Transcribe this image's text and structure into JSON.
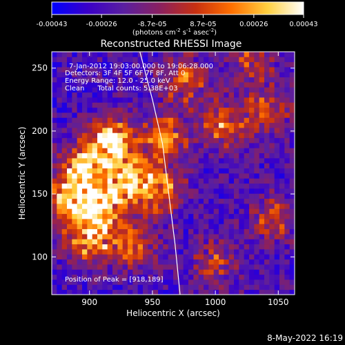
{
  "chart_data": {
    "type": "heatmap",
    "title": "Reconstructed RHESSI Image",
    "xlabel": "Heliocentric X (arcsec)",
    "ylabel": "Heliocentric Y (arcsec)",
    "xlim": [
      870,
      1063
    ],
    "ylim": [
      70,
      263
    ],
    "x_ticks": [
      900,
      950,
      1000,
      1050
    ],
    "y_ticks": [
      100,
      150,
      200,
      250
    ],
    "colorbar": {
      "min": -0.00043,
      "max": 0.00043,
      "ticks": [
        -0.00043,
        -0.00026,
        -8.7e-05,
        8.7e-05,
        0.00026,
        0.00043
      ],
      "tick_labels": [
        "-0.00043",
        "-0.00026",
        "-8.7e-05",
        "8.7e-05",
        "0.00026",
        "0.00043"
      ],
      "units_prefix": "(photons cm",
      "units_exp1": "-2",
      "units_mid": " s",
      "units_exp2": "-1",
      "units_mid2": " asec",
      "units_exp3": "-2",
      "units_suffix": ")",
      "colors": [
        "#0000ff",
        "#3a00c8",
        "#5a1fa0",
        "#8a2060",
        "#c83010",
        "#ff7000",
        "#ffd040",
        "#ffffff"
      ]
    },
    "annotations": [
      "7-Jan-2012 19:03:00.000 to 19:06:28.000",
      "Detectors: 3F 4F 5F 6F 7F 8F, Att 0",
      "Energy Range: 12.0 - 25.0 keV",
      "Clean      Total counts: 5.38E+03"
    ],
    "peak_label": "Position of Peak = [918,189]",
    "peak": [
      918,
      189
    ],
    "limb_curve": [
      [
        940,
        263
      ],
      [
        950,
        225
      ],
      [
        958,
        190
      ],
      [
        963,
        150
      ],
      [
        968,
        110
      ],
      [
        972,
        70
      ]
    ],
    "hotspots": [
      {
        "x": 918,
        "y": 192,
        "amp": 1.0
      },
      {
        "x": 895,
        "y": 170,
        "amp": 0.85
      },
      {
        "x": 882,
        "y": 145,
        "amp": 0.75
      },
      {
        "x": 908,
        "y": 138,
        "amp": 0.9
      },
      {
        "x": 930,
        "y": 160,
        "amp": 0.7
      },
      {
        "x": 955,
        "y": 155,
        "amp": 0.7
      },
      {
        "x": 900,
        "y": 112,
        "amp": 0.7
      },
      {
        "x": 935,
        "y": 110,
        "amp": 0.55
      },
      {
        "x": 960,
        "y": 195,
        "amp": 0.6
      },
      {
        "x": 975,
        "y": 240,
        "amp": 0.55
      },
      {
        "x": 1005,
        "y": 205,
        "amp": 0.55
      },
      {
        "x": 1040,
        "y": 215,
        "amp": 0.5
      },
      {
        "x": 1045,
        "y": 130,
        "amp": 0.45
      },
      {
        "x": 1000,
        "y": 95,
        "amp": 0.4
      },
      {
        "x": 1030,
        "y": 255,
        "amp": 0.45
      }
    ],
    "grid": false
  },
  "timestamp": "8-May-2022 16:19"
}
